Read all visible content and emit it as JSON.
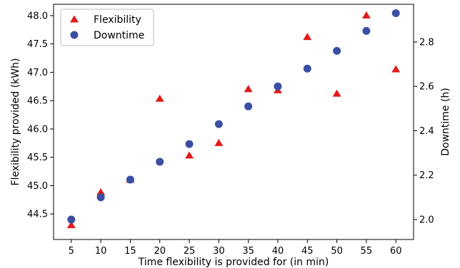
{
  "chart_data": {
    "type": "scatter",
    "title": "",
    "xlabel": "Time flexibility is provided for (in min)",
    "ylabel_left": "Flexibility provided (kWh)",
    "ylabel_right": "Downtime (h)",
    "x": [
      5,
      10,
      15,
      20,
      25,
      30,
      35,
      40,
      45,
      50,
      55,
      60
    ],
    "x_ticks": [
      "5",
      "10",
      "15",
      "20",
      "25",
      "30",
      "35",
      "40",
      "45",
      "50",
      "55",
      "60"
    ],
    "xlim": [
      2,
      63
    ],
    "ylim_left": [
      44.05,
      48.2
    ],
    "ylim_right": [
      1.91,
      2.97
    ],
    "y_ticks_left": [
      "44.5",
      "45.0",
      "45.5",
      "46.0",
      "46.5",
      "47.0",
      "47.5",
      "48.0"
    ],
    "y_ticks_right": [
      "2.0",
      "2.2",
      "2.4",
      "2.6",
      "2.8"
    ],
    "grid": false,
    "legend_position": "top-left",
    "series": [
      {
        "name": "Flexibility",
        "axis": "left",
        "marker": "triangle",
        "color": "#e31a1c",
        "values": [
          44.3,
          44.88,
          45.1,
          46.53,
          45.53,
          45.75,
          46.7,
          46.68,
          47.62,
          46.62,
          48.0,
          47.05
        ]
      },
      {
        "name": "Downtime",
        "axis": "right",
        "marker": "circle",
        "color": "#3a4fa3",
        "values": [
          2.0,
          2.1,
          2.18,
          2.26,
          2.34,
          2.43,
          2.51,
          2.6,
          2.68,
          2.76,
          2.85,
          2.93
        ]
      }
    ]
  }
}
